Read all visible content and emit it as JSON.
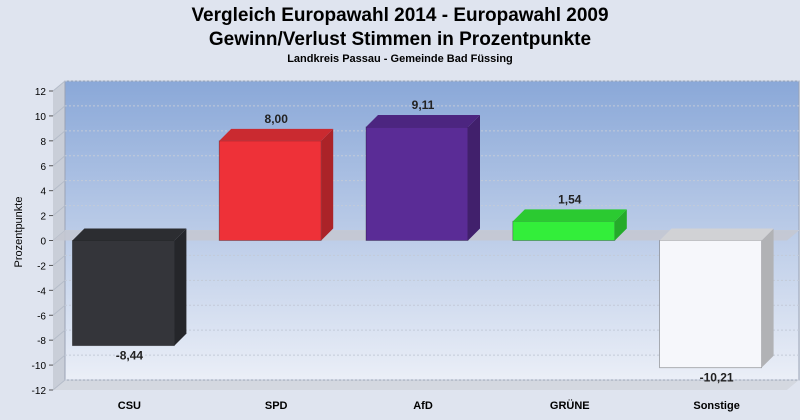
{
  "chart_data": {
    "type": "bar",
    "title_line1": "Vergleich Europawahl 2014 - Europawahl 2009",
    "title_line2": "Gewinn/Verlust Stimmen in Prozentpunkte",
    "subtitle": "Landkreis Passau - Gemeinde Bad Füssing",
    "ylabel": "Prozentpunkte",
    "xlabel": "",
    "ylim": [
      -12,
      12
    ],
    "yticks": [
      12,
      10,
      8,
      6,
      4,
      2,
      0,
      -2,
      -4,
      -6,
      -8,
      -10,
      -12
    ],
    "grid": true,
    "categories": [
      "CSU",
      "SPD",
      "AfD",
      "GRÜNE",
      "Sonstige"
    ],
    "values": [
      -8.44,
      8.0,
      9.11,
      1.54,
      -10.21
    ],
    "value_labels": [
      "-8,44",
      "8,00",
      "9,11",
      "1,54",
      "-10,21"
    ],
    "colors": {
      "CSU": "#34353a",
      "SPD": "#ee3138",
      "AfD": "#5a2c96",
      "GRÜNE": "#33ee3a",
      "Sonstige": "#f6f7fb"
    },
    "plot_background_top": "#8aa8d8",
    "plot_background_bottom": "#eef1f8"
  }
}
